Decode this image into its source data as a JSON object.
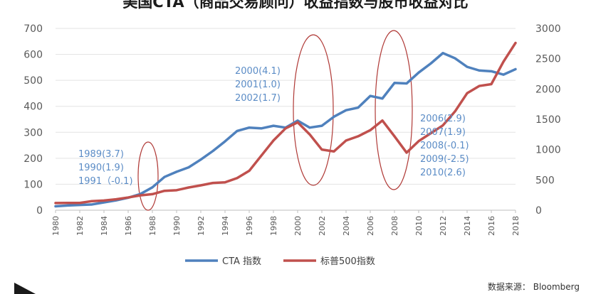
{
  "chart_data": {
    "type": "line",
    "title": "美国CTA（商品交易顾问）收益指数与股市收益对比",
    "x": [
      1980,
      1981,
      1982,
      1983,
      1984,
      1985,
      1986,
      1987,
      1988,
      1989,
      1990,
      1991,
      1992,
      1993,
      1994,
      1995,
      1996,
      1997,
      1998,
      1999,
      2000,
      2001,
      2002,
      2003,
      2004,
      2005,
      2006,
      2007,
      2008,
      2009,
      2010,
      2011,
      2012,
      2013,
      2014,
      2015,
      2016,
      2017,
      2018
    ],
    "x_tick_labels": [
      "1980",
      "1982",
      "1984",
      "1986",
      "1988",
      "1990",
      "1992",
      "1994",
      "1996",
      "1998",
      "2000",
      "2002",
      "2004",
      "2006",
      "2008",
      "2010",
      "2012",
      "2014",
      "2016",
      "2018"
    ],
    "y_left": {
      "range": [
        0,
        700
      ],
      "ticks": [
        "0",
        "100",
        "200",
        "300",
        "400",
        "500",
        "600",
        "700"
      ]
    },
    "y_right": {
      "range": [
        0,
        3000
      ],
      "ticks": [
        "0",
        "500",
        "1000",
        "1500",
        "2000",
        "2500",
        "3000"
      ]
    },
    "series": [
      {
        "name": "CTA 指数",
        "axis": "left",
        "color": "#4f81bd",
        "values": [
          15,
          18,
          20,
          22,
          30,
          38,
          48,
          62,
          88,
          128,
          148,
          165,
          195,
          228,
          265,
          305,
          318,
          315,
          325,
          318,
          345,
          318,
          325,
          360,
          385,
          395,
          440,
          430,
          490,
          488,
          530,
          565,
          605,
          585,
          552,
          538,
          535,
          522,
          543
        ]
      },
      {
        "name": "标普500指数",
        "axis": "right",
        "color": "#c0504d",
        "values": [
          118,
          120,
          120,
          150,
          160,
          180,
          210,
          245,
          265,
          320,
          330,
          375,
          410,
          450,
          460,
          530,
          650,
          900,
          1150,
          1350,
          1450,
          1250,
          1000,
          970,
          1150,
          1220,
          1320,
          1480,
          1220,
          950,
          1140,
          1270,
          1400,
          1630,
          1930,
          2050,
          2080,
          2450,
          2760
        ]
      }
    ],
    "annotations": [
      {
        "lines": [
          "1989(3.7)",
          "1990(1.9)",
          "1991（-0.1)"
        ]
      },
      {
        "lines": [
          "2000(4.1)",
          "2001(1.0)",
          "2002(1.7)"
        ]
      },
      {
        "lines": [
          "2006(2.9)",
          "2007(1.9)",
          "2008(-0.1)",
          "2009(-2.5)",
          "2010(2.6)"
        ]
      }
    ],
    "highlight_ellipses_years": [
      1988,
      2002,
      2008
    ]
  },
  "source": "数据来源： Bloomberg"
}
